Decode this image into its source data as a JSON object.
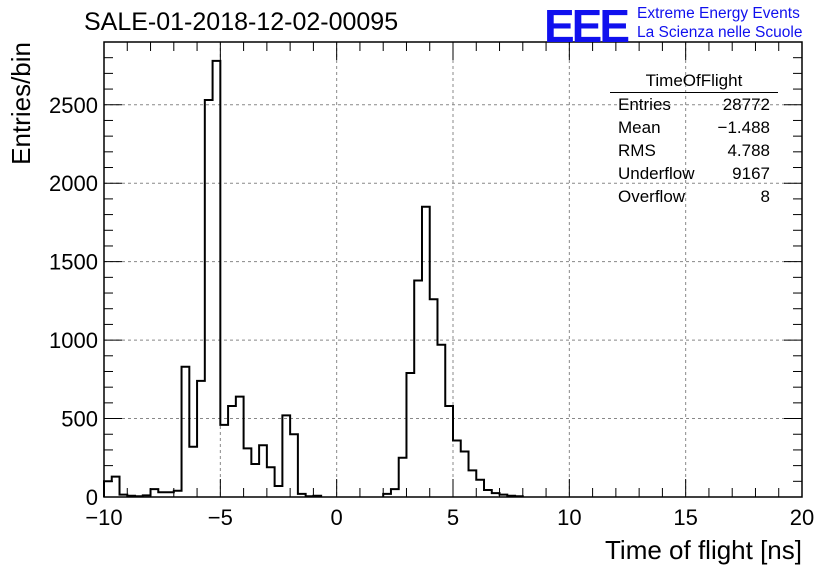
{
  "title": "SALE-01-2018-12-02-00095",
  "logo": {
    "mark": "EEE",
    "line1": "Extreme Energy Events",
    "line2": "La Scienza nelle Scuole",
    "color": "#1010ee"
  },
  "stats_box": {
    "title": "TimeOfFlight",
    "rows": [
      {
        "label": "Entries",
        "value": "28772"
      },
      {
        "label": "Mean",
        "value": "−1.488"
      },
      {
        "label": "RMS",
        "value": "4.788"
      },
      {
        "label": "Underflow",
        "value": "9167"
      },
      {
        "label": "Overflow",
        "value": "8"
      }
    ]
  },
  "chart_data": {
    "type": "histogram",
    "xlabel": "Time of flight [ns]",
    "ylabel": "Entries/bin",
    "xlim": [
      -10,
      20
    ],
    "ylim": [
      0,
      2900
    ],
    "xticks": [
      -10,
      -5,
      0,
      5,
      10,
      15,
      20
    ],
    "yticks": [
      0,
      500,
      1000,
      1500,
      2000,
      2500
    ],
    "grid": true,
    "bin_width": 0.333,
    "bins": [
      {
        "x0": -10.0,
        "x1": -9.667,
        "y": 100
      },
      {
        "x0": -9.667,
        "x1": -9.333,
        "y": 130
      },
      {
        "x0": -9.333,
        "x1": -9.0,
        "y": 15
      },
      {
        "x0": -9.0,
        "x1": -8.667,
        "y": 8
      },
      {
        "x0": -8.667,
        "x1": -8.333,
        "y": 5
      },
      {
        "x0": -8.333,
        "x1": -8.0,
        "y": 10
      },
      {
        "x0": -8.0,
        "x1": -7.667,
        "y": 50
      },
      {
        "x0": -7.667,
        "x1": -7.333,
        "y": 30
      },
      {
        "x0": -7.333,
        "x1": -7.0,
        "y": 30
      },
      {
        "x0": -7.0,
        "x1": -6.667,
        "y": 40
      },
      {
        "x0": -6.667,
        "x1": -6.333,
        "y": 830
      },
      {
        "x0": -6.333,
        "x1": -6.0,
        "y": 320
      },
      {
        "x0": -6.0,
        "x1": -5.667,
        "y": 740
      },
      {
        "x0": -5.667,
        "x1": -5.333,
        "y": 2530
      },
      {
        "x0": -5.333,
        "x1": -5.0,
        "y": 2780
      },
      {
        "x0": -5.0,
        "x1": -4.667,
        "y": 460
      },
      {
        "x0": -4.667,
        "x1": -4.333,
        "y": 580
      },
      {
        "x0": -4.333,
        "x1": -4.0,
        "y": 640
      },
      {
        "x0": -4.0,
        "x1": -3.667,
        "y": 310
      },
      {
        "x0": -3.667,
        "x1": -3.333,
        "y": 210
      },
      {
        "x0": -3.333,
        "x1": -3.0,
        "y": 330
      },
      {
        "x0": -3.0,
        "x1": -2.667,
        "y": 190
      },
      {
        "x0": -2.667,
        "x1": -2.333,
        "y": 70
      },
      {
        "x0": -2.333,
        "x1": -2.0,
        "y": 520
      },
      {
        "x0": -2.0,
        "x1": -1.667,
        "y": 400
      },
      {
        "x0": -1.667,
        "x1": -1.333,
        "y": 20
      },
      {
        "x0": -1.333,
        "x1": -1.0,
        "y": 5
      },
      {
        "x0": -1.0,
        "x1": -0.667,
        "y": 8
      },
      {
        "x0": 2.0,
        "x1": 2.333,
        "y": 20
      },
      {
        "x0": 2.333,
        "x1": 2.667,
        "y": 50
      },
      {
        "x0": 2.667,
        "x1": 3.0,
        "y": 250
      },
      {
        "x0": 3.0,
        "x1": 3.333,
        "y": 790
      },
      {
        "x0": 3.333,
        "x1": 3.667,
        "y": 1380
      },
      {
        "x0": 3.667,
        "x1": 4.0,
        "y": 1850
      },
      {
        "x0": 4.0,
        "x1": 4.333,
        "y": 1260
      },
      {
        "x0": 4.333,
        "x1": 4.667,
        "y": 970
      },
      {
        "x0": 4.667,
        "x1": 5.0,
        "y": 580
      },
      {
        "x0": 5.0,
        "x1": 5.333,
        "y": 360
      },
      {
        "x0": 5.333,
        "x1": 5.667,
        "y": 290
      },
      {
        "x0": 5.667,
        "x1": 6.0,
        "y": 170
      },
      {
        "x0": 6.0,
        "x1": 6.333,
        "y": 110
      },
      {
        "x0": 6.333,
        "x1": 6.667,
        "y": 45
      },
      {
        "x0": 6.667,
        "x1": 7.0,
        "y": 25
      },
      {
        "x0": 7.0,
        "x1": 7.333,
        "y": 15
      },
      {
        "x0": 7.333,
        "x1": 7.667,
        "y": 8
      },
      {
        "x0": 7.667,
        "x1": 8.0,
        "y": 5
      }
    ]
  }
}
